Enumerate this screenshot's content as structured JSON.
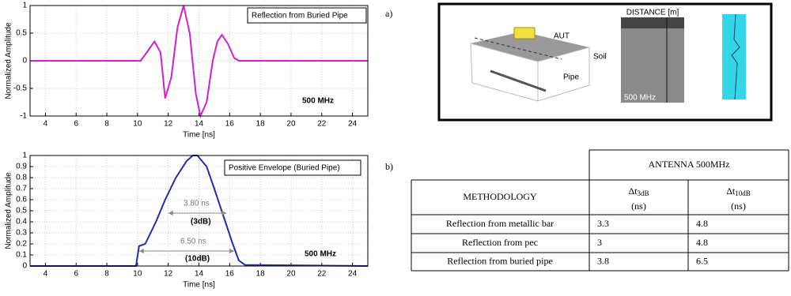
{
  "panel_labels": [
    "a)",
    "b)"
  ],
  "chart_data": [
    {
      "type": "line",
      "title": "Reflection from Buried Pipe",
      "annotations": [
        "500 MHz"
      ],
      "x_label": "Time [ns]",
      "y_label": "Normalized Amplitude",
      "x": [
        3,
        10.2,
        10.6,
        11.1,
        11.5,
        11.8,
        12.2,
        12.6,
        13.0,
        13.4,
        13.8,
        14.1,
        14.5,
        14.9,
        15.2,
        15.5,
        15.9,
        16.3,
        16.6,
        25
      ],
      "values": [
        0,
        0,
        0.15,
        0.35,
        0.15,
        -0.68,
        -0.3,
        0.6,
        1,
        0.5,
        -0.6,
        -1,
        -0.75,
        0,
        0.35,
        0.47,
        0.3,
        0.05,
        0,
        0
      ],
      "color": "#d21fd2",
      "xlim": [
        3,
        25
      ],
      "ylim": [
        -1,
        1
      ],
      "xticks": [
        4,
        6,
        8,
        10,
        12,
        14,
        16,
        18,
        20,
        22,
        24
      ],
      "yticks": [
        -1,
        -0.5,
        0,
        0.5,
        1
      ],
      "grid": true
    },
    {
      "type": "line",
      "title": "Positive Envelope (Buried Pipe)",
      "annotations": [
        "3.80 ns",
        "(3dB)",
        "6.50 ns",
        "(10dB)",
        "500 MHz"
      ],
      "x_label": "Time [ns]",
      "y_label": "Normalized Amplitude",
      "x": [
        3,
        9.9,
        10.1,
        10.5,
        11.2,
        11.8,
        12.5,
        13.2,
        13.6,
        13.9,
        14.5,
        15.0,
        15.6,
        16.2,
        16.6,
        17,
        25
      ],
      "values": [
        0,
        0,
        0.18,
        0.2,
        0.4,
        0.6,
        0.8,
        0.95,
        1,
        1,
        0.9,
        0.7,
        0.45,
        0.2,
        0.05,
        0.01,
        0
      ],
      "color": "#1f2fa8",
      "xlim": [
        3,
        25
      ],
      "ylim": [
        0,
        1
      ],
      "xticks": [
        4,
        6,
        8,
        10,
        12,
        14,
        16,
        18,
        20,
        22,
        24
      ],
      "yticks": [
        0,
        0.1,
        0.2,
        0.3,
        0.4,
        0.5,
        0.6,
        0.7,
        0.8,
        0.9,
        1
      ],
      "grid": true
    }
  ],
  "figure_a": {
    "labels": [
      "AUT",
      "Soil",
      "Pipe",
      "DISTANCE [m]",
      "500 MHz"
    ]
  },
  "table": {
    "group_header": "ANTENNA 500MHz",
    "method_header": "METHODOLOGY",
    "columns": [
      {
        "symbol": "Δt",
        "sub": "3dB",
        "unit": "(ns)"
      },
      {
        "symbol": "Δt",
        "sub": "10dB",
        "unit": "(ns)"
      }
    ],
    "rows": [
      [
        "Reflection from metallic bar",
        3.3,
        4.8
      ],
      [
        "Reflection from pec",
        3,
        4.8
      ],
      [
        "Reflection from buried pipe",
        3.8,
        6.5
      ]
    ]
  }
}
